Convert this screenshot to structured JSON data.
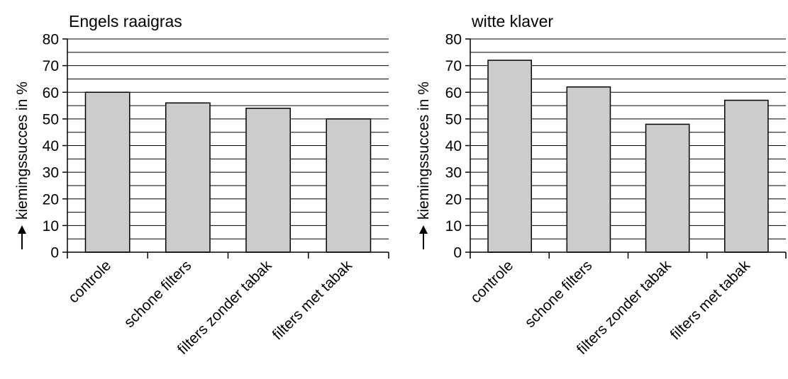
{
  "chart_data": [
    {
      "type": "bar",
      "title": "Engels raaigras",
      "ylabel": "kiemingssucces in %",
      "categories": [
        "controle",
        "schone filters",
        "filters zonder tabak",
        "filters met tabak"
      ],
      "values": [
        60,
        56,
        54,
        50
      ],
      "ylim": [
        0,
        80
      ],
      "yticks": [
        0,
        10,
        20,
        30,
        40,
        50,
        60,
        70,
        80
      ],
      "grid": true,
      "bar_color": "#cccccc"
    },
    {
      "type": "bar",
      "title": "witte klaver",
      "ylabel": "kiemingssucces in %",
      "categories": [
        "controle",
        "schone filters",
        "filters zonder tabak",
        "filters met tabak"
      ],
      "values": [
        72,
        62,
        48,
        57
      ],
      "ylim": [
        0,
        80
      ],
      "yticks": [
        0,
        10,
        20,
        30,
        40,
        50,
        60,
        70,
        80
      ],
      "grid": true,
      "bar_color": "#cccccc"
    }
  ]
}
